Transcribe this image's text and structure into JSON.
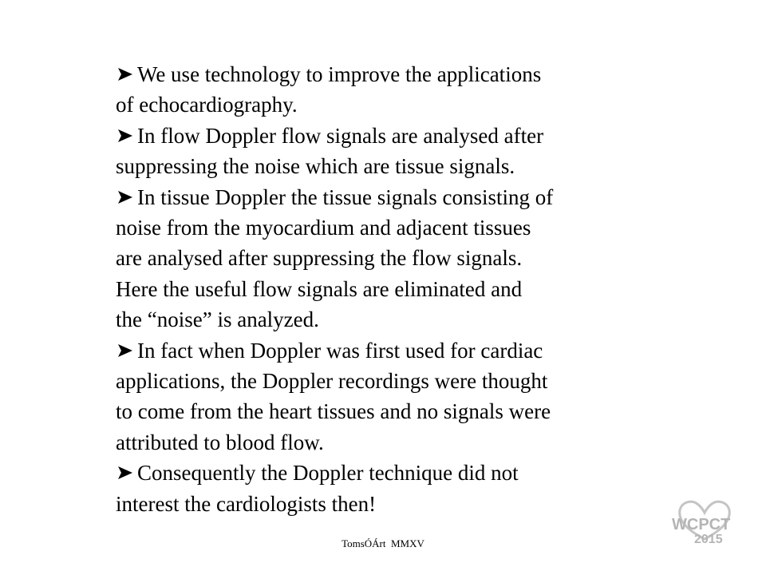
{
  "bullet_icon": "arrowhead-bullet-icon",
  "paragraphs": [
    {
      "bulleted": true,
      "lines": [
        "We use technology to improve the applications",
        "of echocardiography."
      ]
    },
    {
      "bulleted": true,
      "lines": [
        "In flow Doppler flow signals are analysed after",
        "suppressing the noise which are tissue signals."
      ]
    },
    {
      "bulleted": true,
      "lines": [
        "In tissue Doppler the tissue signals consisting of",
        "noise from the myocardium and adjacent tissues",
        "are analysed after suppressing the flow signals.",
        "Here the useful flow signals are eliminated and",
        "the “noise” is analyzed."
      ]
    },
    {
      "bulleted": true,
      "lines": [
        "In fact when Doppler was first used for cardiac",
        "applications, the Doppler recordings were thought",
        "to come from the heart tissues and no signals were",
        "attributed to blood flow."
      ]
    },
    {
      "bulleted": true,
      "lines": [
        "Consequently the Doppler technique did not",
        "interest the cardiologists then!"
      ]
    }
  ],
  "footer": {
    "text": "TomsÓÁrt  MMXV"
  },
  "logo": {
    "text": "WCPCT",
    "year": "2015",
    "color": "#b8b8b8"
  }
}
